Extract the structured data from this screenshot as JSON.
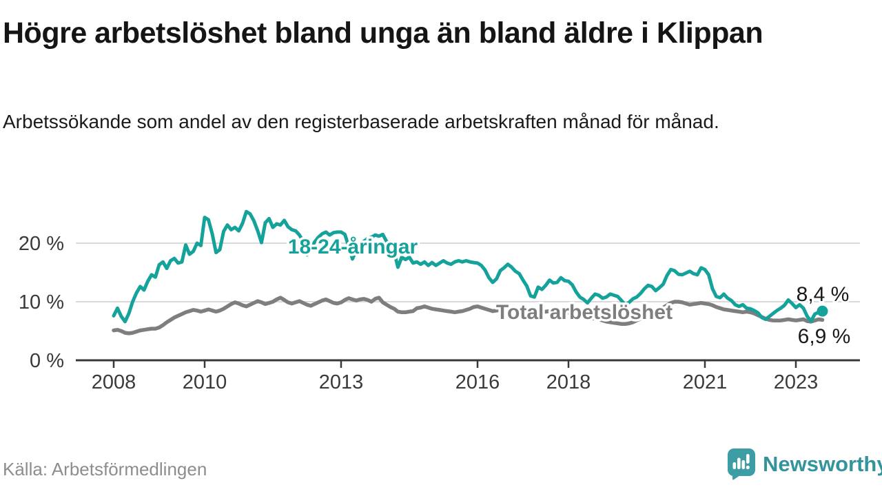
{
  "header": {
    "title": "Högre arbetslöshet bland unga än bland äldre i Klippan",
    "subtitle": "Arbetssökande som andel av den registerbaserade arbetskraften månad för månad."
  },
  "footer": {
    "source": "Källa: Arbetsförmedlingen",
    "brand": "Newsworthy",
    "brand_logo_icon": "speech-bubble-bar-chart-icon"
  },
  "colors": {
    "youth_line": "#14a29a",
    "total_line": "#7e7e7e",
    "axis": "#383838",
    "grid": "#d9d9d9",
    "end_label_text": "#1a1a1a",
    "muted_text": "#8d8d8d",
    "brand_teal": "#3d9da4"
  },
  "chart_data": {
    "type": "line",
    "unit": "%",
    "frequency": "monthly",
    "grid": "horizontal",
    "legend_position": "inline-labels",
    "x_range_years": [
      2007.2,
      2024.4
    ],
    "y_range": [
      0,
      26.5
    ],
    "x_ticks": [
      {
        "value": 2008,
        "label": "2008"
      },
      {
        "value": 2010,
        "label": "2010"
      },
      {
        "value": 2013,
        "label": "2013"
      },
      {
        "value": 2016,
        "label": "2016"
      },
      {
        "value": 2018,
        "label": "2018"
      },
      {
        "value": 2021,
        "label": "2021"
      },
      {
        "value": 2023,
        "label": "2023"
      }
    ],
    "y_ticks": [
      {
        "value": 0,
        "label": "0 %"
      },
      {
        "value": 10,
        "label": "10 %"
      },
      {
        "value": 20,
        "label": "20 %"
      }
    ],
    "series": [
      {
        "name": "18-24-åringar",
        "color": "#14a29a",
        "start_year": 2008,
        "start_month": 1,
        "end_label": "8,4 %",
        "end_value": 8.4,
        "values": [
          7.6,
          8.9,
          7.5,
          6.6,
          8.0,
          10.0,
          11.5,
          12.6,
          12.0,
          13.5,
          14.6,
          14.2,
          16.3,
          16.8,
          15.7,
          17.0,
          17.4,
          16.6,
          16.8,
          19.7,
          18.1,
          18.6,
          20.0,
          19.6,
          24.4,
          24.0,
          21.6,
          18.4,
          18.9,
          22.0,
          23.1,
          22.3,
          22.7,
          22.1,
          23.4,
          25.4,
          25.0,
          23.8,
          22.1,
          20.1,
          23.5,
          24.2,
          22.7,
          23.3,
          23.1,
          23.9,
          22.8,
          22.3,
          22.1,
          21.4,
          20.3,
          18.0,
          19.0,
          20.2,
          21.0,
          21.6,
          21.9,
          21.4,
          21.8,
          21.9,
          21.9,
          21.5,
          19.5,
          17.3,
          18.8,
          19.8,
          20.3,
          20.8,
          21.0,
          21.4,
          21.2,
          21.5,
          20.3,
          19.8,
          18.5,
          15.9,
          17.6,
          17.2,
          17.6,
          16.6,
          16.8,
          16.4,
          16.8,
          16.2,
          16.7,
          16.2,
          16.6,
          17.0,
          16.6,
          16.4,
          16.8,
          17.0,
          16.8,
          17.0,
          16.8,
          16.7,
          16.6,
          16.2,
          15.4,
          14.1,
          13.3,
          13.9,
          15.3,
          15.8,
          16.4,
          15.9,
          15.2,
          14.8,
          13.7,
          12.7,
          11.0,
          10.8,
          12.5,
          12.1,
          12.8,
          13.7,
          13.2,
          13.3,
          14.1,
          13.6,
          13.5,
          12.9,
          11.7,
          10.8,
          10.4,
          9.8,
          10.6,
          11.3,
          11.1,
          10.6,
          10.8,
          11.3,
          11.1,
          10.9,
          10.2,
          9.4,
          9.9,
          10.5,
          10.8,
          11.4,
          12.2,
          12.8,
          12.6,
          11.9,
          12.4,
          13.0,
          14.5,
          15.5,
          15.3,
          14.7,
          14.6,
          14.9,
          15.2,
          14.8,
          14.6,
          15.8,
          15.5,
          14.6,
          12.2,
          10.9,
          10.7,
          11.3,
          10.6,
          10.2,
          9.5,
          9.2,
          9.5,
          8.9,
          8.8,
          8.5,
          8.1,
          7.3,
          7.0,
          7.5,
          8.0,
          8.5,
          8.9,
          9.4,
          10.3,
          9.7,
          9.0,
          9.5,
          8.9,
          7.5,
          6.7,
          7.9,
          8.2,
          8.4
        ]
      },
      {
        "name": "Total arbetslöshet",
        "color": "#7e7e7e",
        "start_year": 2008,
        "start_month": 1,
        "end_label": "6,9 %",
        "end_value": 6.9,
        "values": [
          5.1,
          5.2,
          5.0,
          4.7,
          4.6,
          4.7,
          4.9,
          5.1,
          5.2,
          5.3,
          5.4,
          5.4,
          5.6,
          6.0,
          6.5,
          6.9,
          7.3,
          7.6,
          7.9,
          8.2,
          8.4,
          8.6,
          8.5,
          8.3,
          8.5,
          8.7,
          8.5,
          8.3,
          8.5,
          8.8,
          9.2,
          9.6,
          9.9,
          9.7,
          9.4,
          9.2,
          9.5,
          9.8,
          10.1,
          9.9,
          9.6,
          9.8,
          10.0,
          10.4,
          10.7,
          10.3,
          9.9,
          9.7,
          9.9,
          10.1,
          9.8,
          9.5,
          9.3,
          9.6,
          9.9,
          10.2,
          10.4,
          10.1,
          9.8,
          9.7,
          9.9,
          10.3,
          10.6,
          10.4,
          10.2,
          10.4,
          10.5,
          10.3,
          10.0,
          10.5,
          10.7,
          9.9,
          9.5,
          9.1,
          8.8,
          8.3,
          8.2,
          8.2,
          8.3,
          8.4,
          8.9,
          9.0,
          9.2,
          9.0,
          8.8,
          8.7,
          8.6,
          8.5,
          8.4,
          8.3,
          8.2,
          8.3,
          8.4,
          8.6,
          8.8,
          9.1,
          9.2,
          9.0,
          8.8,
          8.6,
          8.4,
          8.5,
          8.6,
          8.5,
          8.4,
          8.5,
          8.6,
          8.5,
          8.4,
          8.3,
          8.1,
          8.0,
          8.1,
          8.2,
          8.3,
          8.4,
          8.3,
          8.2,
          8.3,
          8.2,
          8.1,
          7.9,
          7.7,
          7.5,
          7.4,
          7.3,
          7.2,
          7.1,
          7.0,
          6.8,
          6.6,
          6.5,
          6.4,
          6.3,
          6.2,
          6.2,
          6.3,
          6.5,
          6.8,
          7.1,
          7.4,
          7.8,
          8.1,
          8.4,
          8.7,
          9.0,
          9.4,
          9.8,
          10.0,
          10.0,
          9.9,
          9.7,
          9.5,
          9.6,
          9.7,
          9.8,
          9.7,
          9.6,
          9.4,
          9.1,
          8.9,
          8.7,
          8.6,
          8.5,
          8.4,
          8.3,
          8.2,
          8.3,
          8.2,
          8.0,
          7.7,
          7.4,
          7.1,
          6.9,
          6.8,
          6.8,
          6.8,
          6.9,
          7.0,
          6.9,
          6.8,
          6.9,
          7.0,
          6.7,
          6.6,
          6.8,
          7.0,
          6.9
        ]
      }
    ]
  }
}
